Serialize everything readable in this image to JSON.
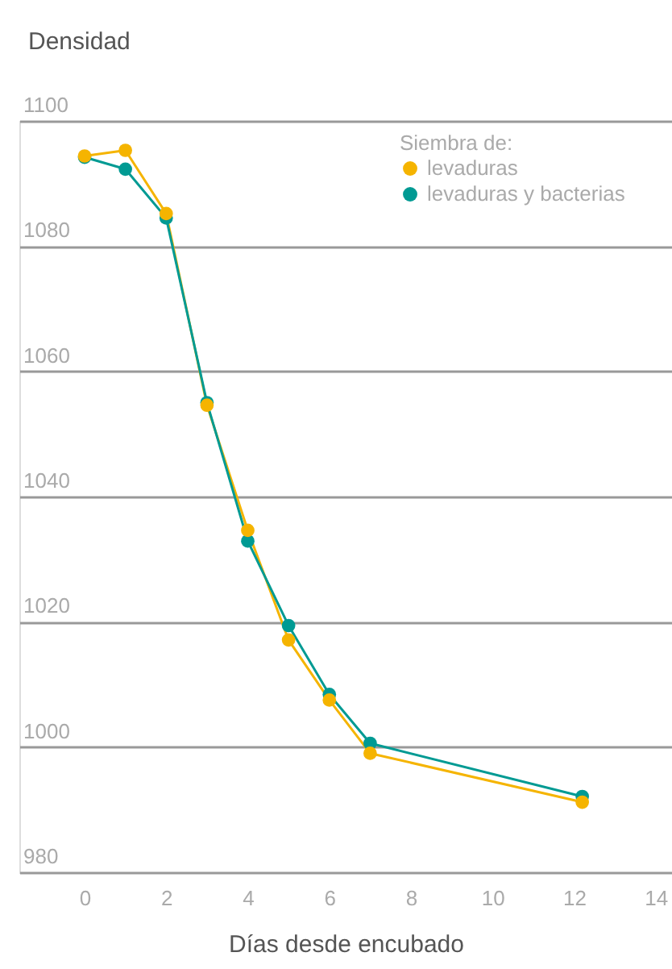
{
  "chart_data": {
    "type": "line",
    "ylabel": "Densidad",
    "xlabel": "Días desde encubado",
    "legend_title": "Siembra de:",
    "x": [
      0,
      1,
      2,
      3,
      4,
      5,
      6,
      7,
      12.2
    ],
    "series": [
      {
        "name": "levaduras",
        "color": "#f5b400",
        "values": [
          1094.4,
          1095.3,
          1085.2,
          1054.6,
          1034.6,
          1017.1,
          1007.5,
          999,
          991.2
        ]
      },
      {
        "name": "levaduras y bacterias",
        "color": "#009a93",
        "values": [
          1094.2,
          1092.3,
          1084.5,
          1055,
          1032.9,
          1019.4,
          1008.4,
          1000.6,
          992.1
        ]
      }
    ],
    "xlim": [
      -1.6,
      14.4
    ],
    "xticks": [
      0,
      2,
      4,
      6,
      8,
      10,
      12,
      14
    ],
    "ylim": [
      980,
      1100
    ],
    "yticks": [
      980,
      1000,
      1020,
      1040,
      1060,
      1080,
      1100
    ],
    "grid": "y",
    "legend": "top right",
    "marker": "circle",
    "line_style": "solid"
  }
}
